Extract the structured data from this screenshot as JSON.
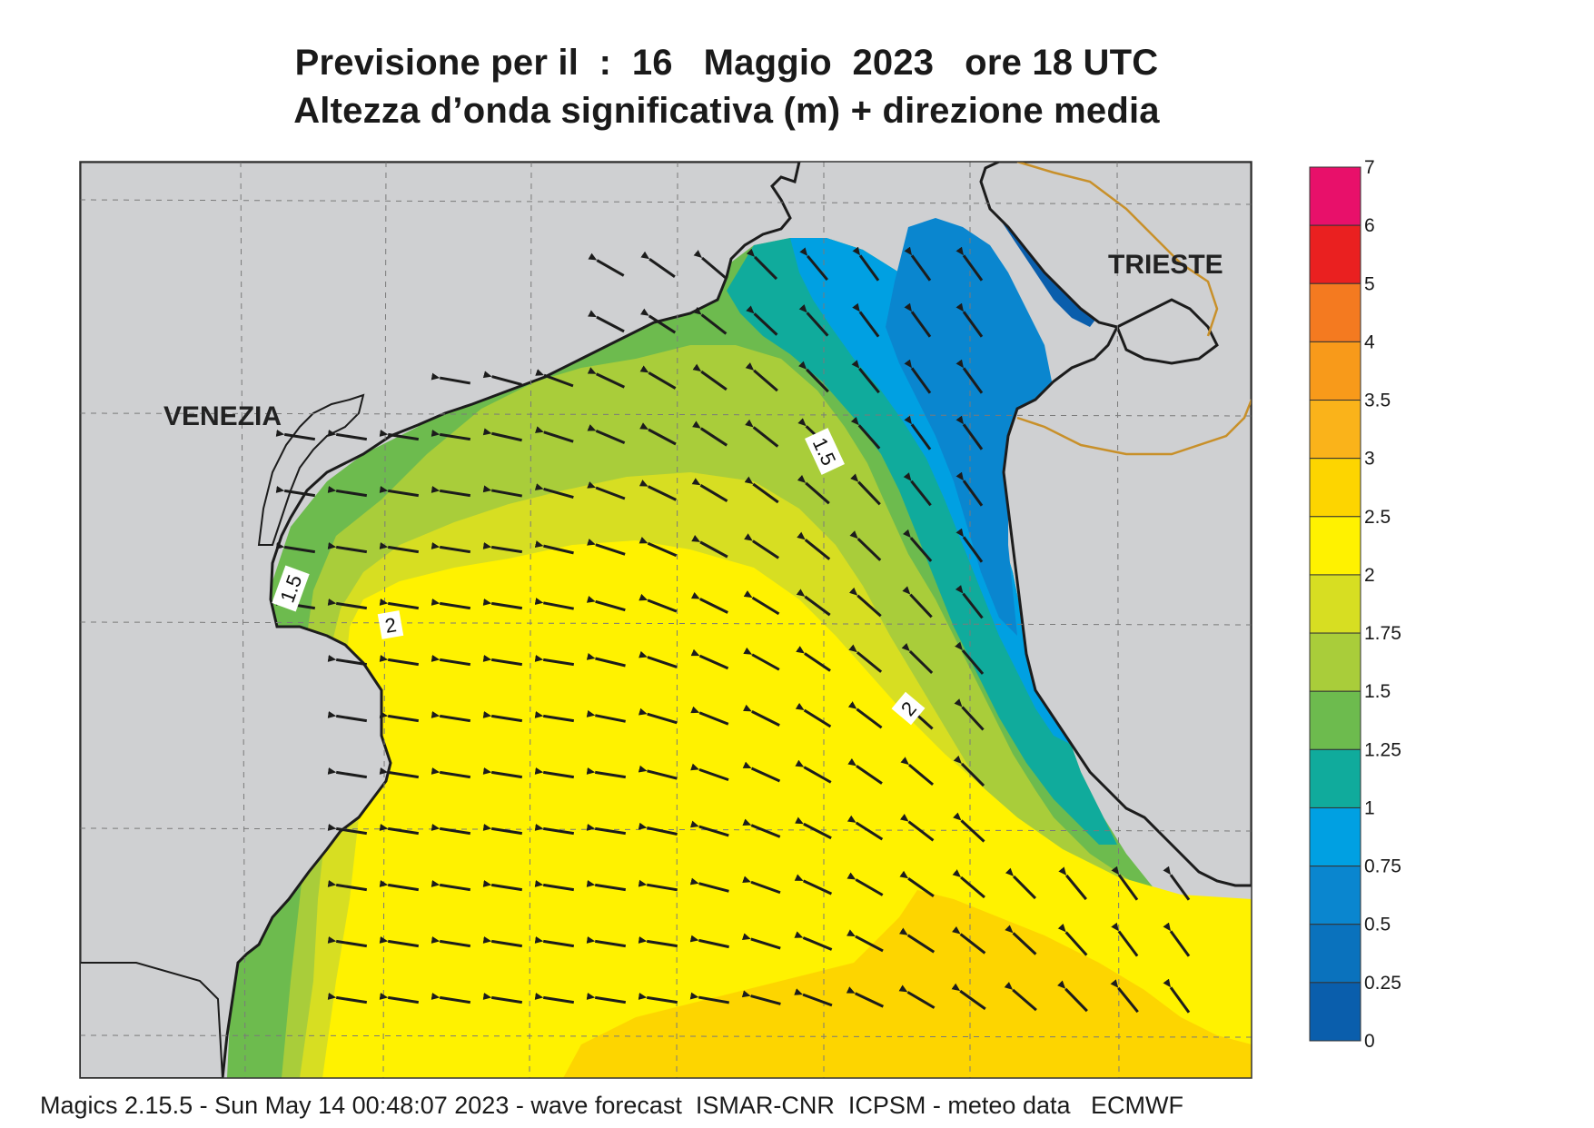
{
  "title": {
    "line1": "Previsione per il  :  16   Maggio  2023   ore 18 UTC",
    "line2": "Altezza d’onda significativa (m) + direzione media"
  },
  "footer": "Magics 2.15.5 - Sun May 14 00:48:07 2023 - wave forecast  ISMAR-CNR  ICPSM - meteo data   ECMWF",
  "map": {
    "cities": [
      {
        "name": "VENEZIA"
      },
      {
        "name": "TRIESTE"
      }
    ],
    "contour_labels": [
      "1.5",
      "1.5",
      "2",
      "2"
    ],
    "land_color": "#cfd0d2",
    "coastline_color": "#1c1c1c",
    "border_color": "#c8902a",
    "arrow_color": "#1c1c1c",
    "arrow_direction": "mostly towards west / north-west"
  },
  "colorbar": {
    "labels": [
      "7",
      "6",
      "5",
      "4",
      "3.5",
      "3",
      "2.5",
      "2",
      "1.75",
      "1.5",
      "1.25",
      "1",
      "0.75",
      "0.5",
      "0.25",
      "0"
    ],
    "colors": [
      "#e8106a",
      "#ea2020",
      "#f47a20",
      "#f89a1a",
      "#fab31a",
      "#fdd500",
      "#fff200",
      "#d7de22",
      "#a9cd3a",
      "#6dbb4e",
      "#10ab9c",
      "#00a0e2",
      "#0a86cf",
      "#0a72bd",
      "#0a5eac"
    ]
  }
}
